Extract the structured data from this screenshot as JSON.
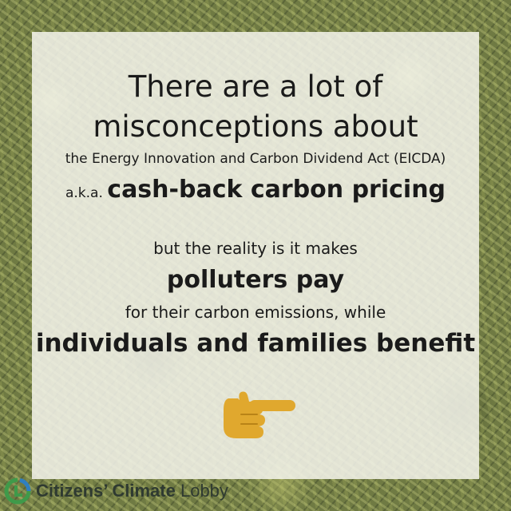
{
  "card": {
    "line1": "There are a lot of",
    "line2": "misconceptions about",
    "line3": "the Energy Innovation and Carbon Dividend Act (EICDA)",
    "aka_prefix": "a.k.a.",
    "aka_bold": "cash-back carbon pricing",
    "line5": "but the reality is it makes",
    "line6": "polluters pay",
    "line7": "for their carbon emissions, while",
    "line8": "individuals and families benefit"
  },
  "pointer": {
    "icon": "pointing-hand-icon",
    "color": "#e0a82e"
  },
  "logo": {
    "icon": "citizens-climate-lobby-logo-icon",
    "bold_text": "Citizens’ Climate",
    "regular_text": "Lobby",
    "colors": {
      "green": "#3f9a4a",
      "blue": "#2f7fc1",
      "text": "#2f3a31"
    }
  }
}
